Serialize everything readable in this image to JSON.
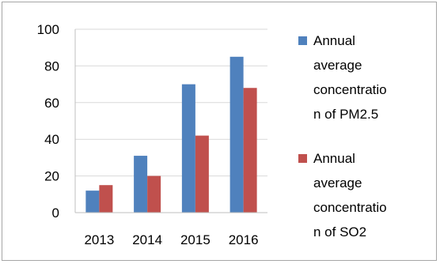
{
  "chart_data": {
    "type": "bar",
    "categories": [
      "2013",
      "2014",
      "2015",
      "2016"
    ],
    "series": [
      {
        "name": "Annual average concentration of PM2.5",
        "legend_lines": [
          "Annual",
          "average",
          "concentratio",
          "n of PM2.5"
        ],
        "color": "#4f81bd",
        "values": [
          12,
          31,
          70,
          85
        ]
      },
      {
        "name": "Annual average concentration of SO2",
        "legend_lines": [
          "Annual",
          "average",
          "concentratio",
          "n of SO2"
        ],
        "color": "#c0504d",
        "values": [
          15,
          20,
          42,
          68
        ]
      }
    ],
    "ylim": [
      0,
      100
    ],
    "yticks": [
      0,
      20,
      40,
      60,
      80,
      100
    ],
    "grid": true,
    "legend_position": "right"
  }
}
